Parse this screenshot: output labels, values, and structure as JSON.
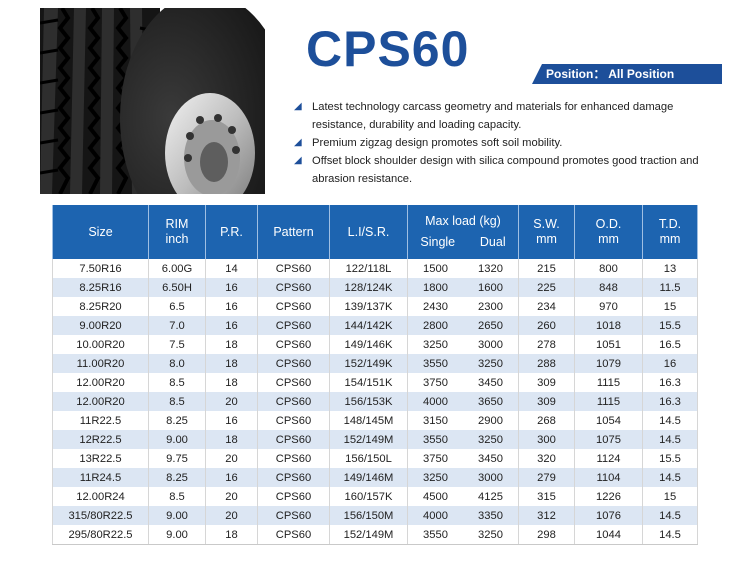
{
  "product": {
    "title": "CPS60",
    "position_label": "Position： All Position"
  },
  "features": [
    "Latest technology carcass geometry and materials for enhanced damage resistance, durability and loading capacity.",
    "Premium zigzag design promotes soft soil mobility.",
    "Offset block shoulder design with silica compound promotes good traction and abrasion resistance."
  ],
  "colors": {
    "brand": "#1d4f9a",
    "header": "#1d64b0",
    "row_alt": "#dce6f3"
  },
  "table": {
    "headers": {
      "size": "Size",
      "rim": [
        "RIM",
        "inch"
      ],
      "pr": "P.R.",
      "pattern": "Pattern",
      "li_sr": "L.I/S.R.",
      "max_load": "Max load (kg)",
      "single": "Single",
      "dual": "Dual",
      "sw": [
        "S.W.",
        "mm"
      ],
      "od": [
        "O.D.",
        "mm"
      ],
      "td": [
        "T.D.",
        "mm"
      ]
    },
    "rows": [
      [
        "7.50R16",
        "6.00G",
        "14",
        "CPS60",
        "122/118L",
        "1500",
        "1320",
        "215",
        "800",
        "13"
      ],
      [
        "8.25R16",
        "6.50H",
        "16",
        "CPS60",
        "128/124K",
        "1800",
        "1600",
        "225",
        "848",
        "11.5"
      ],
      [
        "8.25R20",
        "6.5",
        "16",
        "CPS60",
        "139/137K",
        "2430",
        "2300",
        "234",
        "970",
        "15"
      ],
      [
        "9.00R20",
        "7.0",
        "16",
        "CPS60",
        "144/142K",
        "2800",
        "2650",
        "260",
        "1018",
        "15.5"
      ],
      [
        "10.00R20",
        "7.5",
        "18",
        "CPS60",
        "149/146K",
        "3250",
        "3000",
        "278",
        "1051",
        "16.5"
      ],
      [
        "11.00R20",
        "8.0",
        "18",
        "CPS60",
        "152/149K",
        "3550",
        "3250",
        "288",
        "1079",
        "16"
      ],
      [
        "12.00R20",
        "8.5",
        "18",
        "CPS60",
        "154/151K",
        "3750",
        "3450",
        "309",
        "1115",
        "16.3"
      ],
      [
        "12.00R20",
        "8.5",
        "20",
        "CPS60",
        "156/153K",
        "4000",
        "3650",
        "309",
        "1115",
        "16.3"
      ],
      [
        "11R22.5",
        "8.25",
        "16",
        "CPS60",
        "148/145M",
        "3150",
        "2900",
        "268",
        "1054",
        "14.5"
      ],
      [
        "12R22.5",
        "9.00",
        "18",
        "CPS60",
        "152/149M",
        "3550",
        "3250",
        "300",
        "1075",
        "14.5"
      ],
      [
        "13R22.5",
        "9.75",
        "20",
        "CPS60",
        "156/150L",
        "3750",
        "3450",
        "320",
        "1124",
        "15.5"
      ],
      [
        "11R24.5",
        "8.25",
        "16",
        "CPS60",
        "149/146M",
        "3250",
        "3000",
        "279",
        "1104",
        "14.5"
      ],
      [
        "12.00R24",
        "8.5",
        "20",
        "CPS60",
        "160/157K",
        "4500",
        "4125",
        "315",
        "1226",
        "15"
      ],
      [
        "315/80R22.5",
        "9.00",
        "20",
        "CPS60",
        "156/150M",
        "4000",
        "3350",
        "312",
        "1076",
        "14.5"
      ],
      [
        "295/80R22.5",
        "9.00",
        "18",
        "CPS60",
        "152/149M",
        "3550",
        "3250",
        "298",
        "1044",
        "14.5"
      ]
    ]
  }
}
